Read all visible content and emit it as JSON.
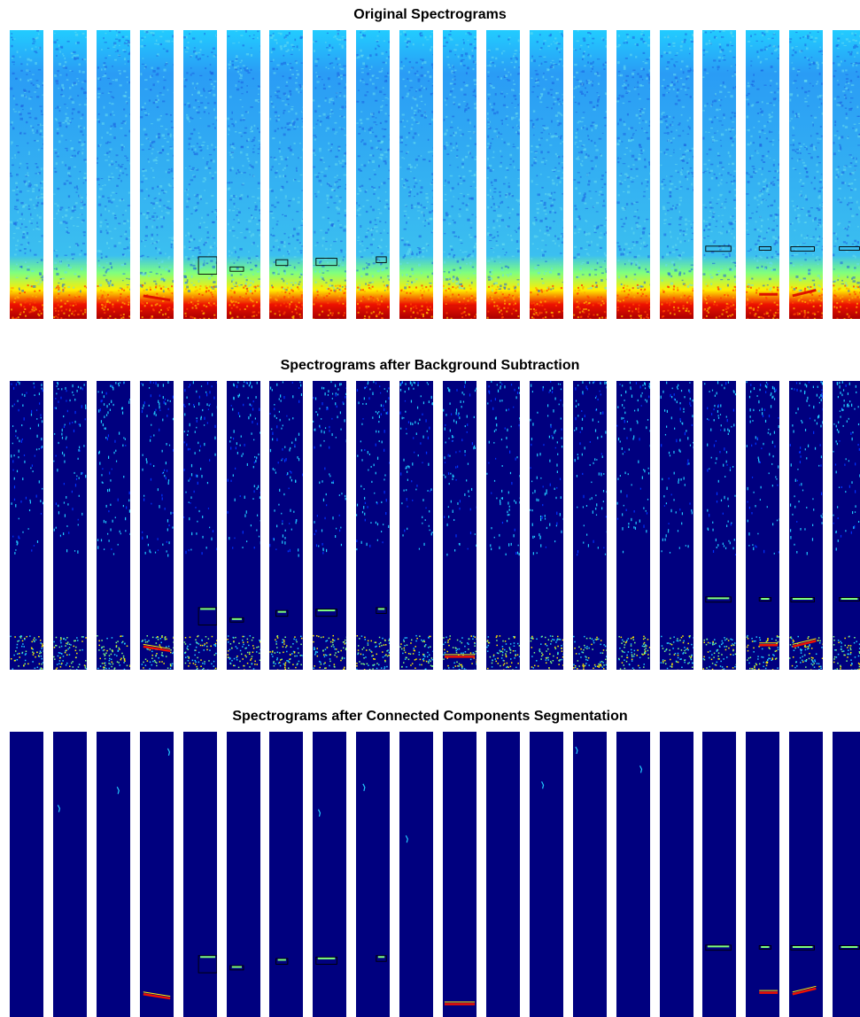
{
  "panels": [
    {
      "title": "Original Spectrograms",
      "kind": "original"
    },
    {
      "title": "Spectrograms after Background Subtraction",
      "kind": "subtracted"
    },
    {
      "title": "Spectrograms after Connected Components Segmentation",
      "kind": "segmented"
    }
  ],
  "strip_count": 20,
  "colormap": {
    "dark_blue": "#00007f",
    "blue": "#0033ff",
    "cyan": "#22ccff",
    "green": "#7fff7f",
    "yellow": "#ffee00",
    "red": "#ee1100",
    "box_outline": "#000000"
  }
}
